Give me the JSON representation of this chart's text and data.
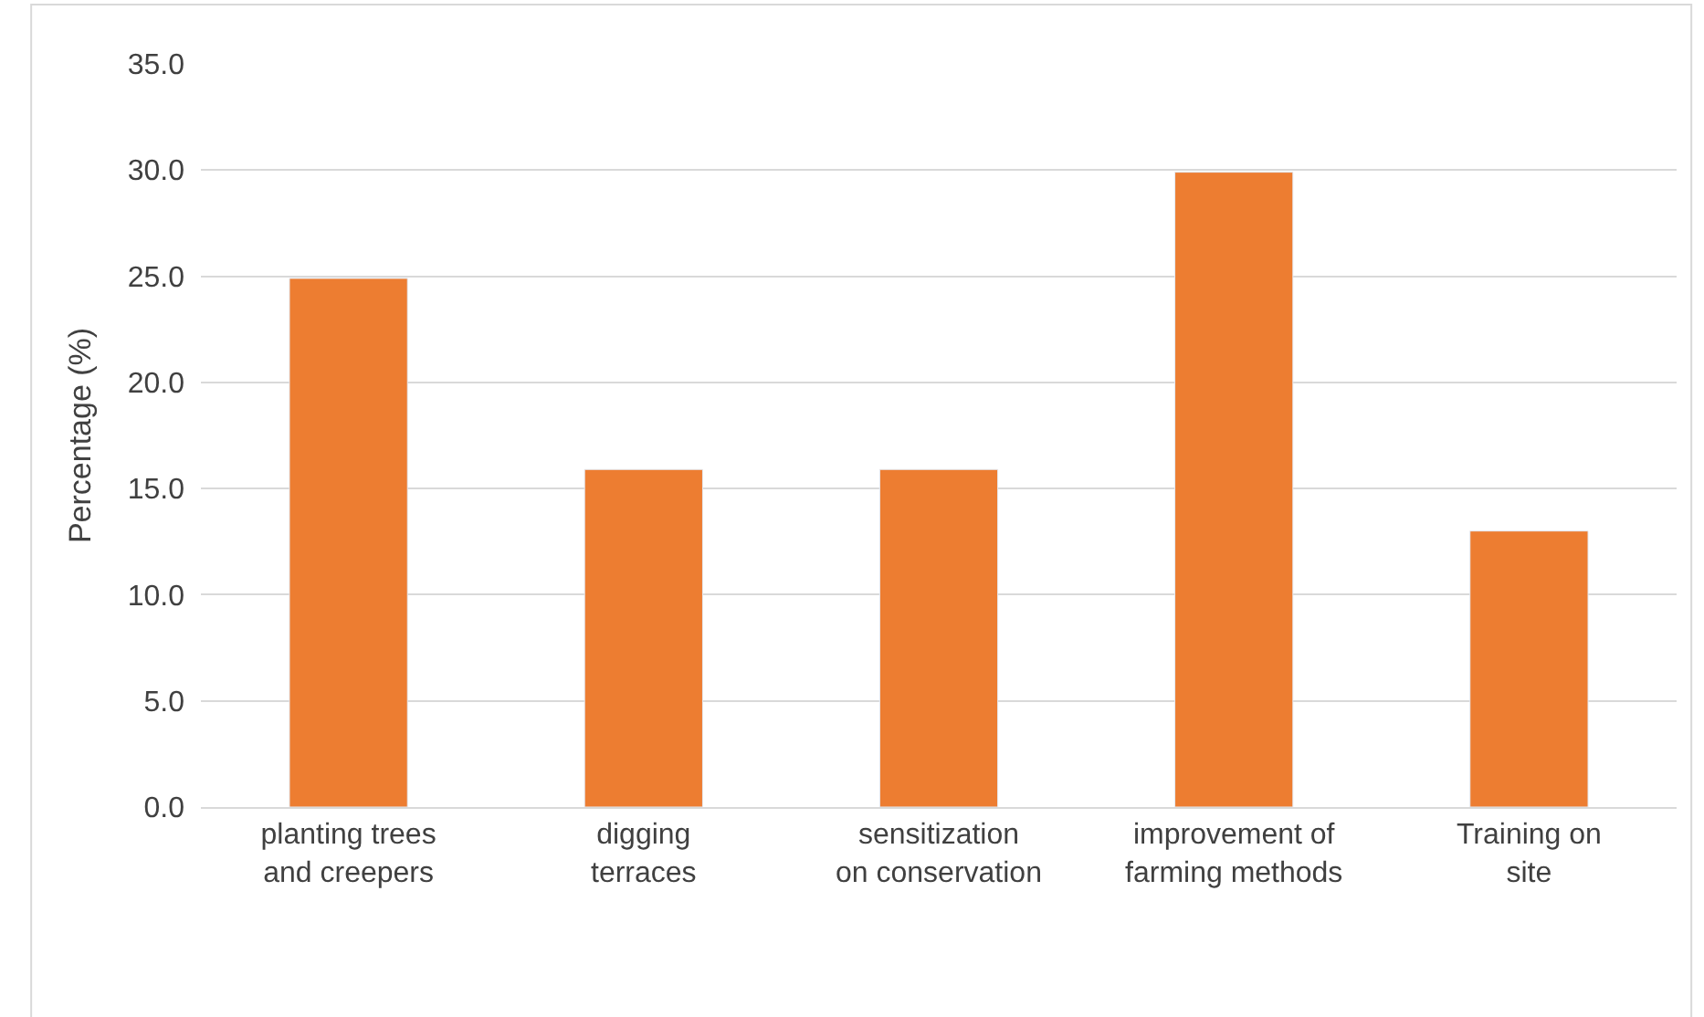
{
  "chart_data": {
    "type": "bar",
    "ylabel": "Percentage (%)",
    "categories": [
      "planting trees and creepers",
      "digging terraces",
      "sensitization on conservation",
      "improvement of farming methods",
      "Training on site"
    ],
    "values": [
      24.9,
      15.9,
      15.9,
      29.9,
      13.0
    ],
    "color": "#ed7d31",
    "ylim": [
      0,
      35
    ],
    "yticks": [
      {
        "value": 0,
        "label": "0.0"
      },
      {
        "value": 5,
        "label": "5.0"
      },
      {
        "value": 10,
        "label": "10.0"
      },
      {
        "value": 15,
        "label": "15.0"
      },
      {
        "value": 20,
        "label": "20.0"
      },
      {
        "value": 25,
        "label": "25.0"
      },
      {
        "value": 30,
        "label": "30.0"
      },
      {
        "value": 35,
        "label": "35.0"
      }
    ],
    "grid": "y"
  }
}
